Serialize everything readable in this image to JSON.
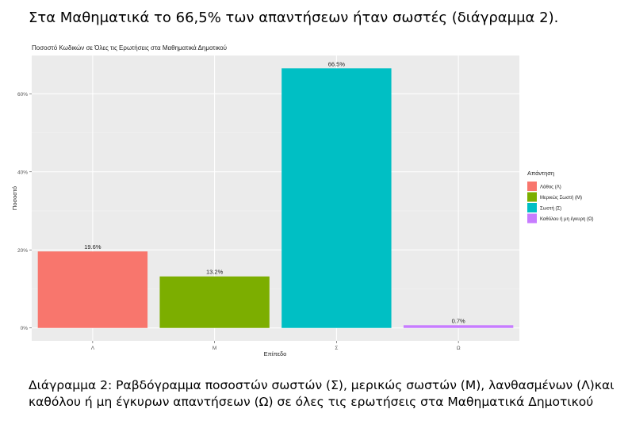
{
  "document": {
    "heading": "Στα Μαθηματικά το 66,5% των απαντήσεων ήταν σωστές (διάγραμμα 2).",
    "caption": "Διάγραμμα 2: Ραβδόγραμμα ποσοστών σωστών (Σ), μερικώς σωστών (Μ), λανθασμένων (Λ)και καθόλου ή μη έγκυρων απαντήσεων (Ω) σε όλες τις ερωτήσεις στα Μαθηματικά Δημοτικού"
  },
  "chart_data": {
    "type": "bar",
    "title": "Ποσοστό Κωδικών σε Όλες τις Ερωτήσεις στα Μαθηματικά Δημοτικού",
    "xlabel": "Επίπεδο",
    "ylabel": "Ποσοστό",
    "categories": [
      "Λ",
      "Μ",
      "Σ",
      "Ω"
    ],
    "values": [
      19.6,
      13.2,
      66.5,
      0.7
    ],
    "data_labels": [
      "19.6%",
      "13.2%",
      "66.5%",
      "0.7%"
    ],
    "colors": [
      "#F8766D",
      "#7CAE00",
      "#00BFC4",
      "#C77CFF"
    ],
    "yticks": [
      0,
      20,
      40,
      60
    ],
    "ytick_labels": [
      "0%",
      "20%",
      "40%",
      "60%"
    ],
    "ylim": [
      -3.3,
      69.8
    ],
    "grid": true,
    "panel_background": "#EBEBEB",
    "legend": {
      "title": "Απάντηση",
      "placement": "right",
      "entries": [
        "Λάθος (Λ)",
        "Μερικώς Σωστή (Μ)",
        "Σωστή (Σ)",
        "Καθόλου ή μη έγκυρη (Ω)"
      ]
    }
  }
}
